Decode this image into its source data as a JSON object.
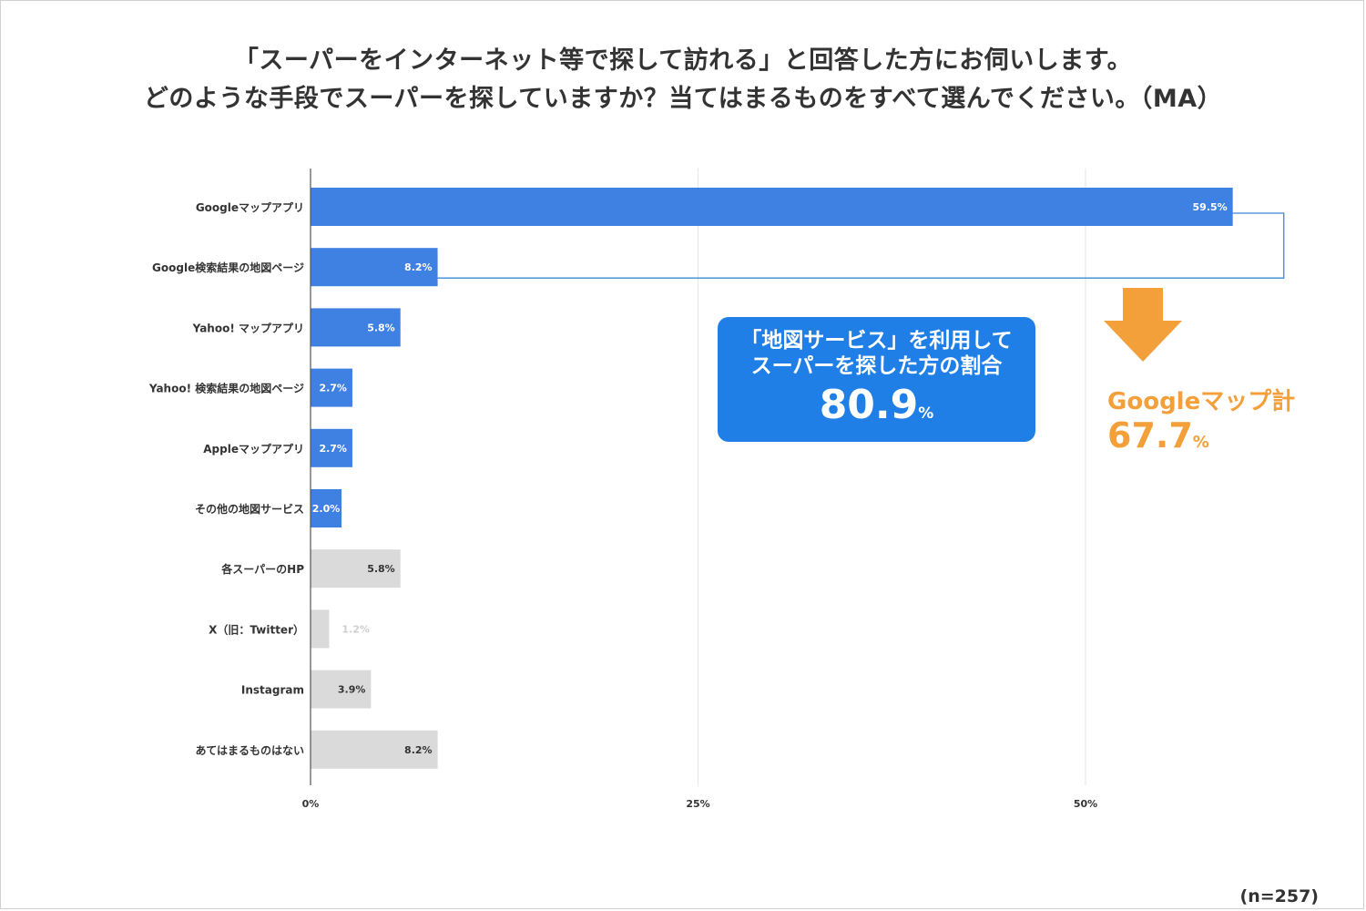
{
  "title": {
    "line1": "「スーパーをインターネット等で探して訪れる」と回答した方にお伺いします。",
    "line2": "どのような手段でスーパーを探していますか？当てはまるものをすべて選んでください。（MA）"
  },
  "chart_data": {
    "type": "bar",
    "orientation": "horizontal",
    "categories": [
      "Googleマップアプリ",
      "Google検索結果の地図ページ",
      "Yahoo! マップアプリ",
      "Yahoo! 検索結果の地図ページ",
      "Appleマップアプリ",
      "その他の地図サービス",
      "各スーパーのHP",
      "X（旧：Twitter）",
      "Instagram",
      "あてはまるものはない"
    ],
    "values": [
      59.5,
      8.2,
      5.8,
      2.7,
      2.7,
      2.0,
      5.8,
      1.2,
      3.9,
      8.2
    ],
    "value_labels": [
      "59.5%",
      "8.2%",
      "5.8%",
      "2.7%",
      "2.7%",
      "2.0%",
      "5.8%",
      "1.2%",
      "3.9%",
      "8.2%"
    ],
    "groups": [
      "map",
      "map",
      "map",
      "map",
      "map",
      "map",
      "other",
      "other",
      "other",
      "other"
    ],
    "colors": {
      "map": "#3f80e3",
      "other": "#dadada",
      "grid": "#e6e6e6",
      "axis": "#555555",
      "bracket": "#3b88d6"
    },
    "xlim": [
      0,
      62.5
    ],
    "ticks": [
      0,
      25,
      50
    ],
    "tick_labels": [
      "0%",
      "25%",
      "50%"
    ],
    "grid": true,
    "unit": "%"
  },
  "summary_box": {
    "line1": "「地図サービス」を利用して",
    "line2": "スーパーを探した方の割合",
    "value": "80.9",
    "unit": "%"
  },
  "google_total": {
    "label": "Googleマップ計",
    "value": "67.7",
    "unit": "%",
    "color": "#f3a03b"
  },
  "sample_note": "(n=257)"
}
